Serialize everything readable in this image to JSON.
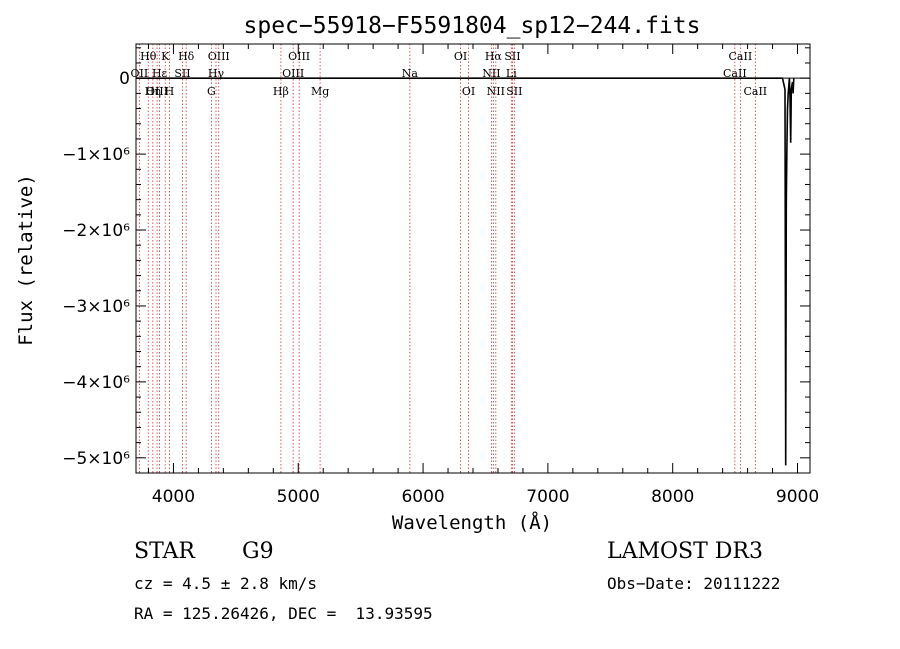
{
  "chart_data": {
    "type": "line",
    "title": "spec−55918−F5591804_sp12−244.fits",
    "xlabel": "Wavelength (Å)",
    "ylabel": "Flux (relative)",
    "xlim": [
      3700,
      9100
    ],
    "ylim": [
      -5200000,
      450000
    ],
    "x_ticks": [
      4000,
      5000,
      6000,
      7000,
      8000,
      9000
    ],
    "y_ticks": [
      {
        "value": 0,
        "label": "0"
      },
      {
        "value": -1000000,
        "label": "−1×10⁶"
      },
      {
        "value": -2000000,
        "label": "−2×10⁶"
      },
      {
        "value": -3000000,
        "label": "−3×10⁶"
      },
      {
        "value": -4000000,
        "label": "−4×10⁶"
      },
      {
        "value": -5000000,
        "label": "−5×10⁶"
      }
    ],
    "series": [
      {
        "name": "flux",
        "x": [
          3700,
          8880,
          8900,
          8905,
          8910,
          8915,
          8920,
          8925,
          8930,
          8935,
          8940,
          8945,
          8950,
          8955,
          8960,
          8965,
          8970
        ],
        "y": [
          0,
          0,
          -150000,
          -5100000,
          -1650000,
          -900000,
          -400000,
          -200000,
          -100000,
          0,
          -250000,
          -850000,
          -150000,
          -100000,
          -50000,
          -200000,
          0
        ]
      }
    ],
    "lines": [
      {
        "wave": 3727,
        "label": "OII",
        "row": 1
      },
      {
        "wave": 3798,
        "label": "Hθ",
        "row": 0
      },
      {
        "wave": 3835,
        "label": "Hη",
        "row": 2
      },
      {
        "wave": 3869,
        "label": "OIII",
        "row": 2
      },
      {
        "wave": 3889,
        "label": "Hε",
        "row": 1
      },
      {
        "wave": 3934,
        "label": "K",
        "row": 0
      },
      {
        "wave": 3968,
        "label": "H",
        "row": 2
      },
      {
        "wave": 4072,
        "label": "SII",
        "row": 1
      },
      {
        "wave": 4102,
        "label": "Hδ",
        "row": 0
      },
      {
        "wave": 4304,
        "label": "G",
        "row": 2
      },
      {
        "wave": 4341,
        "label": "Hγ",
        "row": 1
      },
      {
        "wave": 4363,
        "label": "OIII",
        "row": 0
      },
      {
        "wave": 4861,
        "label": "Hβ",
        "row": 2
      },
      {
        "wave": 4959,
        "label": "OIII",
        "row": 1
      },
      {
        "wave": 5007,
        "label": "OIII",
        "row": 0
      },
      {
        "wave": 5175,
        "label": "Mg",
        "row": 2
      },
      {
        "wave": 5894,
        "label": "Na",
        "row": 1
      },
      {
        "wave": 6300,
        "label": "OI",
        "row": 0
      },
      {
        "wave": 6364,
        "label": "OI",
        "row": 2
      },
      {
        "wave": 6548,
        "label": "NII",
        "row": 1
      },
      {
        "wave": 6563,
        "label": "Hα",
        "row": 0
      },
      {
        "wave": 6583,
        "label": "NII",
        "row": 2
      },
      {
        "wave": 6707,
        "label": "Li",
        "row": 1
      },
      {
        "wave": 6716,
        "label": "SII",
        "row": 0
      },
      {
        "wave": 6731,
        "label": "SII",
        "row": 2
      },
      {
        "wave": 8498,
        "label": "CaII",
        "row": 1
      },
      {
        "wave": 8542,
        "label": "CaII",
        "row": 0
      },
      {
        "wave": 8662,
        "label": "CaII",
        "row": 2
      }
    ]
  },
  "info": {
    "object_class": "STAR",
    "subclass": "G9",
    "survey": "LAMOST DR3",
    "redshift": "cz = 4.5 ± 2.8 km/s",
    "obs_date": "Obs−Date: 20111222",
    "coords": "RA = 125.26426, DEC =  13.93595"
  },
  "colors": {
    "spectrum": "#000000",
    "line_markers": "#cc3333",
    "axes": "#000000"
  }
}
